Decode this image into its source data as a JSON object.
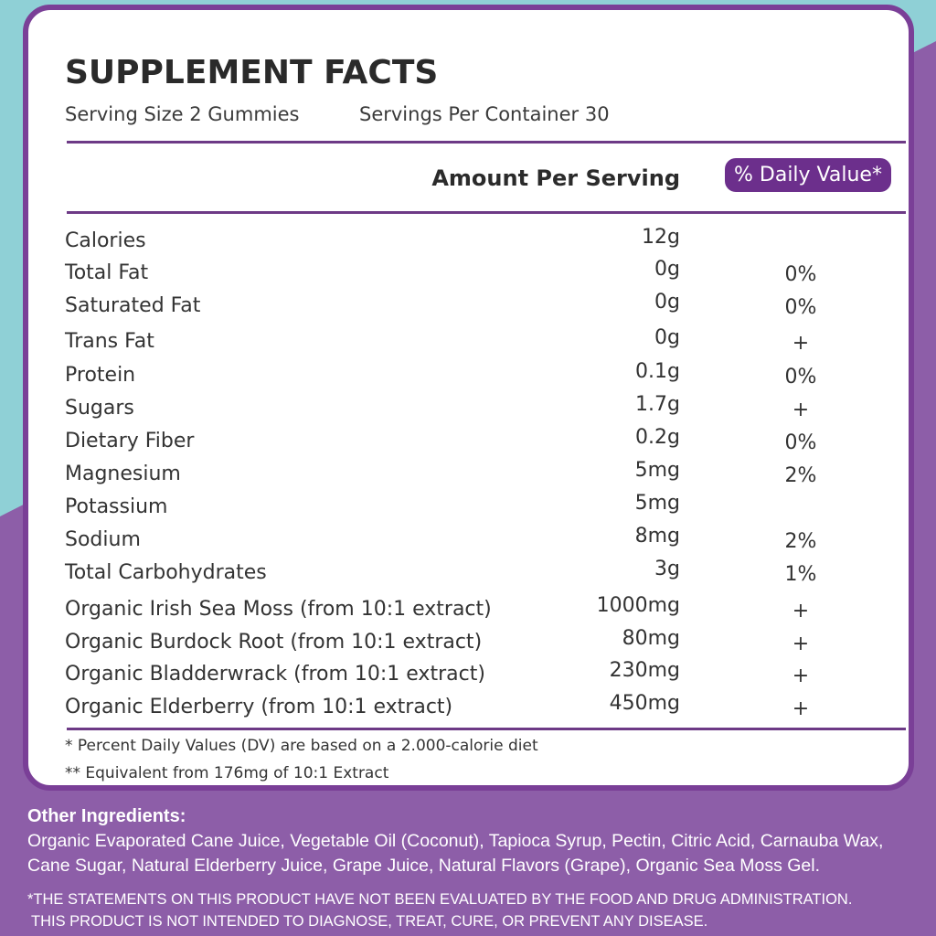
{
  "header": {
    "title": "SUPPLEMENT FACTS",
    "serving_size": "Serving Size 2 Gummies",
    "servings_per_container": "Servings Per Container 30"
  },
  "table": {
    "amount_heading": "Amount Per Serving",
    "dv_heading": "% Daily Value*",
    "rows": [
      {
        "name": "Calories",
        "amount": "12g"
      },
      {
        "name": "Total Fat",
        "amount": "0g",
        "dv": "0%"
      },
      {
        "name": "Saturated Fat",
        "amount": "0g",
        "dv": "0%"
      },
      {
        "name": "Trans Fat",
        "amount": "0g",
        "dv": "+"
      },
      {
        "name": "Protein",
        "amount": "0.1g",
        "dv": "0%"
      },
      {
        "name": "Sugars",
        "amount": "1.7g",
        "dv": "+"
      },
      {
        "name": "Dietary Fiber",
        "amount": "0.2g",
        "dv": "0%"
      },
      {
        "name": "Magnesium",
        "amount": "5mg",
        "dv": "2%"
      },
      {
        "name": "Potassium",
        "amount": "5mg"
      },
      {
        "name": "Sodium",
        "amount": "8mg",
        "dv": "2%"
      },
      {
        "name": "Total Carbohydrates",
        "amount": "3g",
        "dv": "1%"
      },
      {
        "name": "Organic Irish Sea Moss (from 10:1 extract)",
        "amount": "1000mg",
        "dv": "+"
      },
      {
        "name": "Organic Burdock Root (from 10:1 extract)",
        "amount": "80mg",
        "dv": "+"
      },
      {
        "name": "Organic Bladderwrack (from 10:1 extract)",
        "amount": "230mg",
        "dv": "+"
      },
      {
        "name": "Organic Elderberry (from 10:1 extract)",
        "amount": "450mg",
        "dv": "+"
      }
    ]
  },
  "footnotes": [
    "* Percent Daily Values (DV) are based on a 2.000-calorie diet",
    "** Equivalent from 176mg of 10:1 Extract"
  ],
  "other_ingredients": {
    "heading": "Other Ingredients:",
    "text": "Organic Evaporated Cane Juice, Vegetable Oil (Coconut), Tapioca Syrup, Pectin, Citric Acid, Carnauba Wax, Cane Sugar, Natural Elderberry Juice, Grape Juice, Natural Flavors (Grape), Organic Sea Moss Gel."
  },
  "disclaimer": [
    "*THE STATEMENTS ON THIS PRODUCT HAVE NOT BEEN EVALUATED BY THE FOOD AND DRUG ADMINISTRATION.",
    "THIS PRODUCT IS NOT INTENDED TO DIAGNOSE, TREAT, CURE, OR PREVENT ANY DISEASE."
  ]
}
